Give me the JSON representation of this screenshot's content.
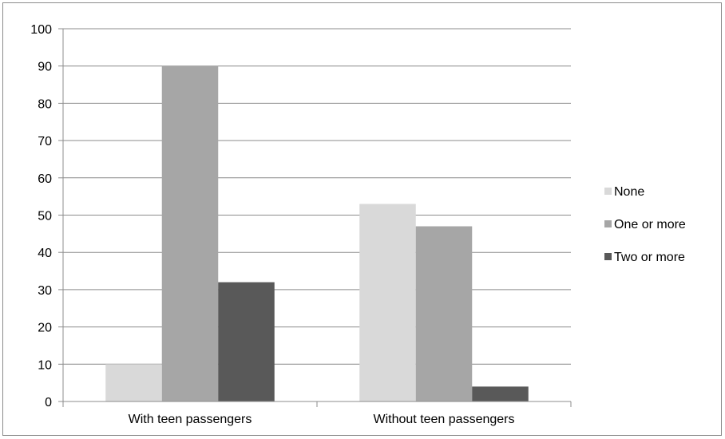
{
  "chart_data": {
    "type": "bar",
    "categories": [
      "With teen passengers",
      "Without teen passengers"
    ],
    "series": [
      {
        "name": "None",
        "values": [
          10,
          53
        ],
        "color": "#d9d9d9"
      },
      {
        "name": "One or more",
        "values": [
          90,
          47
        ],
        "color": "#a6a6a6"
      },
      {
        "name": "Two or more",
        "values": [
          32,
          4
        ],
        "color": "#595959"
      }
    ],
    "yticks": [
      "0",
      "10",
      "20",
      "30",
      "40",
      "50",
      "60",
      "70",
      "80",
      "90",
      "100"
    ],
    "ylim": [
      0,
      100
    ],
    "grid": true,
    "legend_position": "right",
    "gridline_color": "#8c8c8c",
    "axis_color": "#8c8c8c"
  }
}
